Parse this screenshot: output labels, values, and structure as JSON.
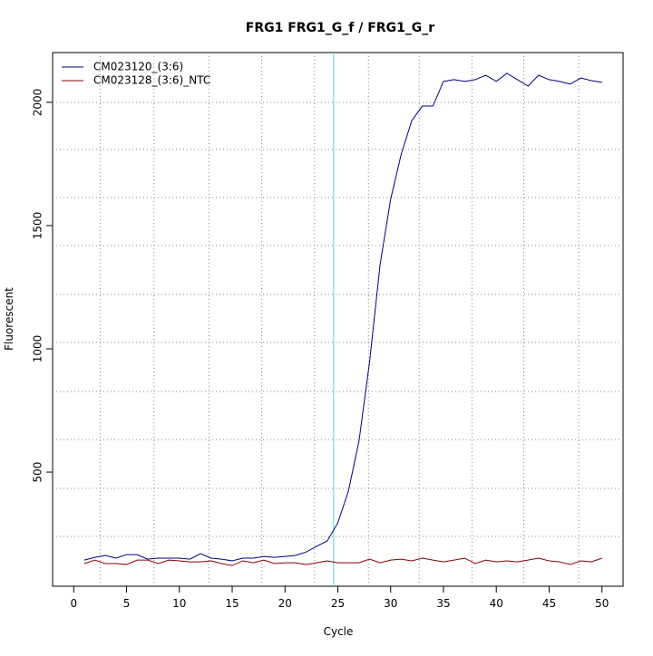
{
  "chart_data": {
    "type": "line",
    "title": "FRG1  FRG1_G_f / FRG1_G_r",
    "xlabel": "Cycle",
    "ylabel": "Fluorescent",
    "x": [
      1,
      2,
      3,
      4,
      5,
      6,
      7,
      8,
      9,
      10,
      11,
      12,
      13,
      14,
      15,
      16,
      17,
      18,
      19,
      20,
      21,
      22,
      23,
      24,
      25,
      26,
      27,
      28,
      29,
      30,
      31,
      32,
      33,
      34,
      35,
      36,
      37,
      38,
      39,
      40,
      41,
      42,
      43,
      44,
      45,
      46,
      47,
      48,
      49,
      50
    ],
    "series": [
      {
        "name": "CM023120_(3:6)",
        "color": "#000080",
        "values": [
          143,
          154,
          162,
          151,
          165,
          165,
          147,
          151,
          151,
          151,
          147,
          169,
          151,
          147,
          140,
          151,
          151,
          158,
          154,
          158,
          162,
          176,
          199,
          221,
          294,
          423,
          625,
          945,
          1342,
          1607,
          1790,
          1926,
          1985,
          1985,
          2085,
          2092,
          2085,
          2092,
          2110,
          2085,
          2118,
          2092,
          2066,
          2110,
          2092,
          2085,
          2074,
          2099,
          2088,
          2081
        ]
      },
      {
        "name": "CM023128_(3:6)_NTC",
        "color": "#8b0000",
        "values": [
          129,
          143,
          129,
          129,
          125,
          143,
          143,
          129,
          143,
          140,
          136,
          136,
          140,
          129,
          121,
          140,
          132,
          143,
          129,
          132,
          132,
          125,
          132,
          140,
          132,
          132,
          132,
          147,
          132,
          143,
          147,
          140,
          151,
          143,
          136,
          143,
          151,
          129,
          143,
          136,
          140,
          136,
          143,
          151,
          140,
          136,
          125,
          140,
          136,
          151
        ]
      }
    ],
    "xlim": [
      -2,
      52
    ],
    "ylim": [
      37,
      2202
    ],
    "xticks": [
      0,
      5,
      10,
      15,
      20,
      25,
      30,
      35,
      40,
      45,
      50
    ],
    "yticks": [
      500,
      1000,
      1500,
      2000
    ],
    "xgrid": [
      2.5,
      7.6,
      12.8,
      17.8,
      22.8,
      27.9,
      32.7,
      37.7,
      42.6,
      47.8
    ],
    "ygrid": [
      239,
      434,
      632,
      827,
      1026,
      1221,
      1419,
      1614,
      1809,
      2000
    ],
    "threshold_cycle": 24.6,
    "threshold_color": "#40e0e0",
    "legend": "top-left"
  }
}
